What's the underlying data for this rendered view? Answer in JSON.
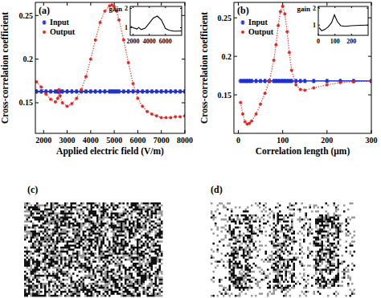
{
  "chart_data": [
    {
      "type": "line",
      "title": "(a)",
      "x_label": "Applied electric field (V/m)",
      "y_label": "Cross-correlation coefficient",
      "x": [
        1700,
        1900,
        2100,
        2300,
        2500,
        2600,
        2650,
        2700,
        2800,
        3000,
        3200,
        3400,
        3600,
        3800,
        4000,
        4200,
        4400,
        4600,
        4800,
        4900,
        5000,
        5100,
        5200,
        5400,
        5600,
        5800,
        6000,
        6200,
        6400,
        6600,
        6800,
        7000,
        7200,
        7400,
        7600,
        7800,
        8000
      ],
      "series": [
        {
          "name": "Input",
          "color": "#1f2fd0",
          "marker": "star",
          "line_style": "solid",
          "values": [
            0.163,
            0.163,
            0.163,
            0.163,
            0.163,
            0.163,
            0.163,
            0.163,
            0.163,
            0.163,
            0.163,
            0.163,
            0.163,
            0.163,
            0.163,
            0.163,
            0.163,
            0.163,
            0.163,
            0.163,
            0.163,
            0.163,
            0.163,
            0.163,
            0.163,
            0.163,
            0.163,
            0.163,
            0.163,
            0.163,
            0.163,
            0.163,
            0.163,
            0.163,
            0.163,
            0.163,
            0.163
          ]
        },
        {
          "name": "Output",
          "color": "#e8221c",
          "marker": "circle",
          "line_style": "dotted",
          "values": [
            0.174,
            0.168,
            0.16,
            0.154,
            0.151,
            0.155,
            0.165,
            0.158,
            0.15,
            0.146,
            0.149,
            0.155,
            0.165,
            0.18,
            0.2,
            0.222,
            0.242,
            0.255,
            0.261,
            0.262,
            0.26,
            0.255,
            0.245,
            0.222,
            0.196,
            0.172,
            0.155,
            0.146,
            0.14,
            0.137,
            0.135,
            0.133,
            0.133,
            0.133,
            0.134,
            0.134,
            0.135
          ]
        }
      ],
      "xlim": [
        1650,
        8000
      ],
      "xticks": [
        2000,
        3000,
        4000,
        5000,
        6000,
        7000,
        8000
      ],
      "ylim": [
        0.115,
        0.265
      ],
      "yticks": [
        0.15,
        0.2,
        0.25
      ],
      "legend": "upper left",
      "inset": {
        "type": "line",
        "y_label": "gain",
        "x": [
          1700,
          2000,
          2500,
          2700,
          3000,
          3500,
          4000,
          4500,
          5000,
          5500,
          6000,
          6500,
          7000,
          7500,
          8000
        ],
        "series": [
          {
            "color": "#000000",
            "line_style": "solid",
            "values": [
              1.07,
              1.0,
              0.93,
              1.01,
              0.9,
              0.97,
              1.23,
              1.5,
              1.6,
              1.4,
              0.95,
              0.86,
              0.82,
              0.82,
              0.83
            ]
          }
        ],
        "xlim": [
          1650,
          8000
        ],
        "xticks": [
          2000,
          4000,
          6000
        ],
        "ylim": [
          0.6,
          2.1
        ],
        "yticks": [
          1,
          2
        ]
      }
    },
    {
      "type": "line",
      "title": "(b)",
      "x_label": "Correlation length (μm)",
      "y_label": "Cross-correlation coefficient",
      "x": [
        5,
        10,
        15,
        20,
        25,
        30,
        40,
        50,
        60,
        70,
        80,
        85,
        90,
        95,
        100,
        105,
        110,
        115,
        120,
        130,
        140,
        150,
        170,
        200,
        230,
        260,
        300
      ],
      "series": [
        {
          "name": "Input",
          "color": "#1f2fd0",
          "marker": "star",
          "line_style": "solid",
          "values": [
            0.168,
            0.168,
            0.168,
            0.168,
            0.168,
            0.168,
            0.168,
            0.168,
            0.168,
            0.168,
            0.168,
            0.168,
            0.168,
            0.168,
            0.168,
            0.168,
            0.168,
            0.168,
            0.168,
            0.168,
            0.168,
            0.168,
            0.168,
            0.168,
            0.168,
            0.168,
            0.168
          ]
        },
        {
          "name": "Output",
          "color": "#e8221c",
          "marker": "circle",
          "line_style": "dotted",
          "values": [
            0.14,
            0.125,
            0.115,
            0.112,
            0.113,
            0.116,
            0.125,
            0.138,
            0.152,
            0.168,
            0.195,
            0.215,
            0.24,
            0.258,
            0.265,
            0.255,
            0.232,
            0.205,
            0.182,
            0.163,
            0.157,
            0.156,
            0.159,
            0.163,
            0.166,
            0.167,
            0.168
          ]
        }
      ],
      "xlim": [
        -10,
        300
      ],
      "xticks": [
        0,
        100,
        200,
        300
      ],
      "ylim": [
        0.1,
        0.27
      ],
      "yticks": [
        0.15,
        0.2,
        0.25
      ],
      "legend": "upper left",
      "inset": {
        "type": "line",
        "y_label": "gain",
        "x": [
          5,
          20,
          40,
          60,
          80,
          97,
          115,
          135,
          160,
          200,
          250,
          300
        ],
        "series": [
          {
            "color": "#000000",
            "line_style": "solid",
            "values": [
              0.85,
              0.67,
              0.75,
              0.9,
              1.15,
              1.6,
              1.2,
              0.97,
              0.93,
              0.97,
              0.99,
              1.0
            ]
          }
        ],
        "xlim": [
          0,
          300
        ],
        "xticks": [
          0,
          100,
          200
        ],
        "ylim": [
          0.4,
          2.1
        ],
        "yticks": [
          1,
          2
        ]
      }
    }
  ],
  "images": [
    {
      "label": "(c)"
    },
    {
      "label": "(d)"
    }
  ]
}
